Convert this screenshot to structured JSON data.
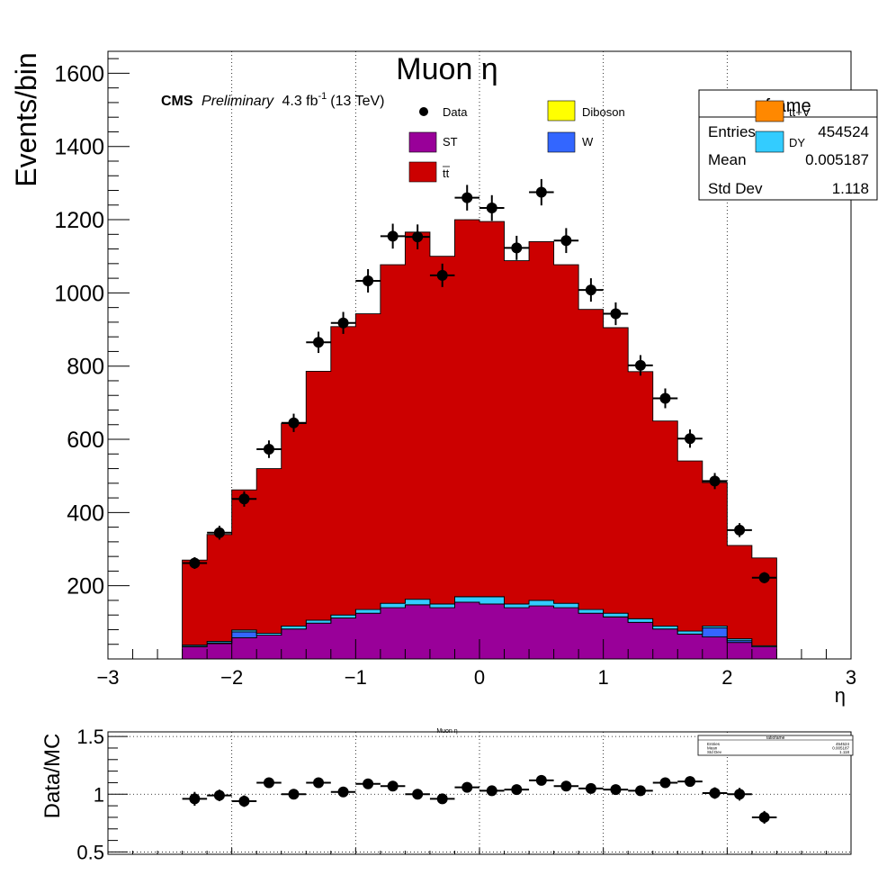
{
  "chart_data": [
    {
      "type": "bar",
      "title": "Muon η",
      "xlabel": "η",
      "ylabel": "Events/bin",
      "xlim": [
        -3,
        3
      ],
      "ylim": [
        0,
        1660
      ],
      "x_ticks": [
        "−3",
        "−2",
        "−1",
        "0",
        "1",
        "2",
        "3"
      ],
      "y_ticks": [
        "200",
        "400",
        "600",
        "800",
        "1000",
        "1200",
        "1400",
        "1600"
      ],
      "grid": "vertical dotted",
      "cms_label": "CMS",
      "preliminary_label": "Preliminary",
      "lumi_label": "4.3 fb",
      "lumi_sup": "-1",
      "energy_label": "(13 TeV)",
      "bin_edges": [
        -2.4,
        -2.2,
        -2.0,
        -1.8,
        -1.6,
        -1.4,
        -1.2,
        -1.0,
        -0.8,
        -0.6,
        -0.4,
        -0.2,
        0.0,
        0.2,
        0.4,
        0.6,
        0.8,
        1.0,
        1.2,
        1.4,
        1.6,
        1.8,
        2.0,
        2.2,
        2.4
      ],
      "stack": [
        {
          "name": "ST",
          "color": "#990099",
          "values": [
            33,
            42,
            58,
            65,
            82,
            98,
            112,
            125,
            140,
            148,
            140,
            155,
            150,
            140,
            145,
            140,
            125,
            115,
            100,
            82,
            68,
            60,
            45,
            33
          ]
        },
        {
          "name": "W",
          "color": "#3366ff",
          "values": [
            2,
            2,
            16,
            0,
            0,
            0,
            0,
            0,
            0,
            0,
            0,
            0,
            0,
            0,
            0,
            0,
            0,
            0,
            0,
            0,
            0,
            25,
            5,
            0
          ]
        },
        {
          "name": "DY",
          "color": "#33ccff",
          "values": [
            3,
            4,
            5,
            5,
            8,
            8,
            8,
            10,
            12,
            15,
            10,
            15,
            20,
            10,
            15,
            12,
            10,
            10,
            10,
            8,
            8,
            5,
            5,
            3
          ]
        },
        {
          "name": "t̅t̅",
          "color": "#cc0000",
          "values": [
            232,
            292,
            383,
            450,
            553,
            680,
            788,
            808,
            925,
            1003,
            950,
            1030,
            1025,
            938,
            980,
            925,
            820,
            780,
            675,
            560,
            465,
            392,
            255,
            240
          ]
        }
      ],
      "data": {
        "name": "Data",
        "values": [
          262,
          345,
          437,
          573,
          645,
          865,
          918,
          1033,
          1155,
          1153,
          1048,
          1260,
          1232,
          1123,
          1275,
          1143,
          1008,
          943,
          802,
          712,
          602,
          486,
          352,
          222
        ],
        "errors": [
          16,
          19,
          21,
          24,
          25,
          29,
          30,
          32,
          34,
          34,
          32,
          35,
          35,
          33,
          36,
          34,
          32,
          31,
          28,
          27,
          25,
          22,
          19,
          15
        ]
      },
      "legend": {
        "placement": "top",
        "entries": [
          {
            "label": "Data",
            "marker": "point"
          },
          {
            "label": "Diboson",
            "color": "#ffff00"
          },
          {
            "label": "ST",
            "color": "#990099"
          },
          {
            "label": "W",
            "color": "#3366ff"
          },
          {
            "label": "t̅t̅",
            "label_text": "tt",
            "color": "#cc0000"
          },
          {
            "label": "tt+V",
            "label_text": "tt+V",
            "color": "#ff8800"
          },
          {
            "label": "DY",
            "color": "#33ccff"
          }
        ]
      },
      "stats_box": {
        "title": "frame",
        "rows": [
          {
            "key": "Entries",
            "value": "454524"
          },
          {
            "key": "Mean",
            "value": "0.005187"
          },
          {
            "key": "Std Dev",
            "value": "1.118"
          }
        ]
      }
    },
    {
      "type": "scatter",
      "title": "Muon η",
      "ylabel": "Data/MC",
      "xlim": [
        -3,
        3
      ],
      "ylim": [
        0.48,
        1.54
      ],
      "y_ticks": [
        "0.5",
        "1",
        "1.5"
      ],
      "grid": "dotted",
      "x": [
        -2.3,
        -2.1,
        -1.9,
        -1.7,
        -1.5,
        -1.3,
        -1.1,
        -0.9,
        -0.7,
        -0.5,
        -0.3,
        -0.1,
        0.1,
        0.3,
        0.5,
        0.7,
        0.9,
        1.1,
        1.3,
        1.5,
        1.7,
        1.9,
        2.1,
        2.3
      ],
      "values": [
        0.96,
        0.99,
        0.94,
        1.1,
        1.0,
        1.1,
        1.02,
        1.09,
        1.07,
        1.0,
        0.96,
        1.06,
        1.03,
        1.04,
        1.12,
        1.07,
        1.05,
        1.04,
        1.03,
        1.1,
        1.11,
        1.01,
        1.0,
        0.8
      ],
      "errors": [
        0.06,
        0.05,
        0.05,
        0.04,
        0.04,
        0.035,
        0.035,
        0.035,
        0.03,
        0.03,
        0.03,
        0.03,
        0.03,
        0.03,
        0.03,
        0.03,
        0.03,
        0.035,
        0.035,
        0.04,
        0.045,
        0.05,
        0.055,
        0.055
      ],
      "stats_box": {
        "title": "ratiofame",
        "rows": [
          {
            "key": "Entries",
            "value": "454524"
          },
          {
            "key": "Mean",
            "value": "0.005187"
          },
          {
            "key": "Std Dev",
            "value": "1.118"
          }
        ]
      }
    }
  ]
}
